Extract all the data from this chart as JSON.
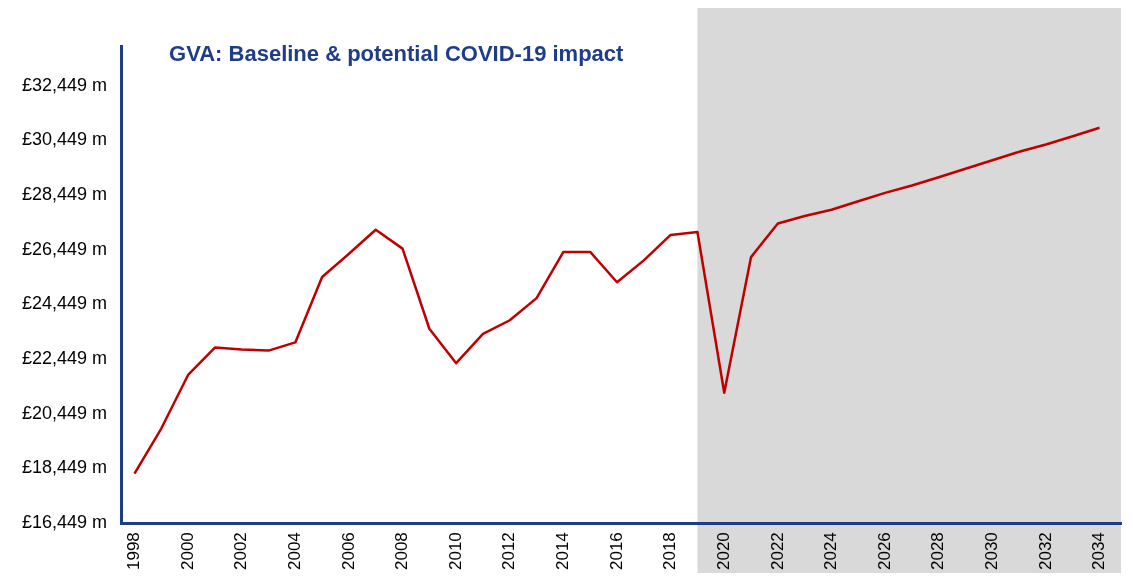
{
  "chart_data": {
    "type": "line",
    "title": "GVA: Baseline & potential COVID-19 impact",
    "x": [
      1998,
      1999,
      2000,
      2001,
      2002,
      2003,
      2004,
      2005,
      2006,
      2007,
      2008,
      2009,
      2010,
      2011,
      2012,
      2013,
      2014,
      2015,
      2016,
      2017,
      2018,
      2019,
      2020,
      2021,
      2022,
      2023,
      2024,
      2025,
      2026,
      2027,
      2028,
      2029,
      2030,
      2031,
      2032,
      2033,
      2034
    ],
    "series": [
      {
        "color": "#c00000",
        "values": [
          18260,
          19910,
          21870,
          22870,
          22800,
          22760,
          23060,
          25450,
          26300,
          27180,
          26490,
          23560,
          22300,
          23370,
          23870,
          24680,
          26370,
          26370,
          25260,
          26060,
          26990,
          27100,
          21220,
          26180,
          27410,
          27680,
          27910,
          28220,
          28530,
          28800,
          29100,
          29410,
          29720,
          30030,
          30300,
          30600,
          30910
        ]
      }
    ],
    "xlim": [
      1997.5,
      2034.8
    ],
    "xticks": [
      1998,
      2000,
      2002,
      2004,
      2006,
      2008,
      2010,
      2012,
      2014,
      2016,
      2018,
      2020,
      2022,
      2024,
      2026,
      2028,
      2030,
      2032,
      2034
    ],
    "ylim": [
      16449,
      33900
    ],
    "yticks": [
      {
        "value": 16449,
        "label": "£16,449 m"
      },
      {
        "value": 18449,
        "label": "£18,449 m"
      },
      {
        "value": 20449,
        "label": "£20,449 m"
      },
      {
        "value": 22449,
        "label": "£22,449 m"
      },
      {
        "value": 24449,
        "label": "£24,449 m"
      },
      {
        "value": 26449,
        "label": "£26,449 m"
      },
      {
        "value": 28449,
        "label": "£28,449 m"
      },
      {
        "value": 30449,
        "label": "£30,449 m"
      },
      {
        "value": 32449,
        "label": "£32,449 m"
      }
    ],
    "bands": [
      {
        "axis": "x",
        "from": 2019,
        "to": 2034.8,
        "color": "#d9d9d9"
      }
    ],
    "grid": false,
    "legend": false,
    "marker": "none",
    "line_style": "solid"
  }
}
